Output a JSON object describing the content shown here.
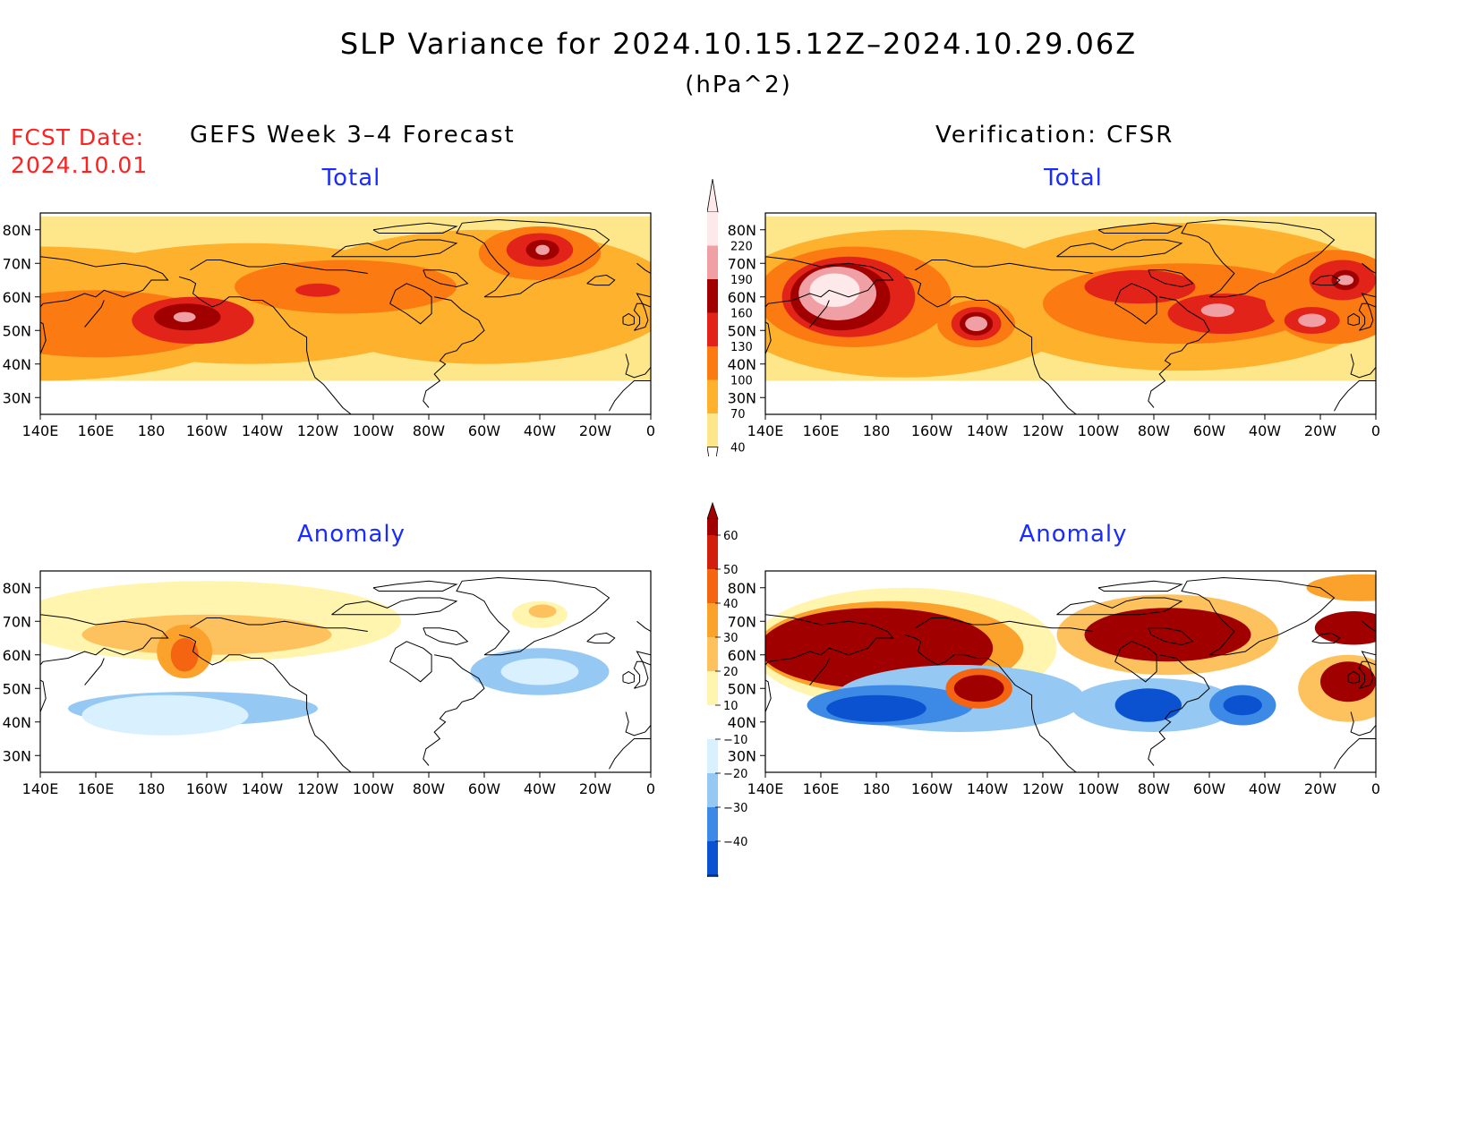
{
  "title": "SLP Variance for 2024.10.15.12Z–2024.10.29.06Z",
  "units": "(hPa^2)",
  "fcst_date_label": "FCST Date:",
  "fcst_date": "2024.10.01",
  "columns": {
    "left": "GEFS Week 3–4 Forecast",
    "right": "Verification: CFSR"
  },
  "panels": [
    {
      "id": "gefs-total",
      "subtitle": "Total"
    },
    {
      "id": "cfsr-total",
      "subtitle": "Total"
    },
    {
      "id": "gefs-anomaly",
      "subtitle": "Anomaly"
    },
    {
      "id": "cfsr-anomaly",
      "subtitle": "Anomaly"
    }
  ],
  "axes": {
    "lat_ticks": [
      "80N",
      "70N",
      "60N",
      "50N",
      "40N",
      "30N"
    ],
    "lat_values": [
      80,
      70,
      60,
      50,
      40,
      30
    ],
    "lat_range": [
      25,
      85
    ],
    "lon_ticks": [
      "140E",
      "160E",
      "180",
      "160W",
      "140W",
      "120W",
      "100W",
      "80W",
      "60W",
      "40W",
      "20W",
      "0"
    ],
    "lon_range_east_deg": [
      140,
      360
    ]
  },
  "colorbars": {
    "total": {
      "labels": [
        "40",
        "70",
        "100",
        "130",
        "160",
        "190",
        "220"
      ],
      "colors": [
        "#fde78a",
        "#fdb12c",
        "#fb7a12",
        "#e2231a",
        "#a10000",
        "#f0a0a4",
        "#fde8ea"
      ]
    },
    "anomaly": {
      "labels": [
        "−40",
        "−30",
        "−20",
        "−10",
        "10",
        "20",
        "30",
        "40",
        "50",
        "60"
      ],
      "colors": [
        "#0a52cf",
        "#3c8ae6",
        "#96c8f4",
        "#d9f1ff",
        "#ffffff",
        "#fff5ae",
        "#fdc25d",
        "#fba22c",
        "#f56410",
        "#d21f0d",
        "#a10000"
      ]
    }
  },
  "colors": {
    "title": "#000000",
    "fcst": "#ff2020",
    "subtitle": "#1a2bff",
    "coast": "#000000"
  }
}
